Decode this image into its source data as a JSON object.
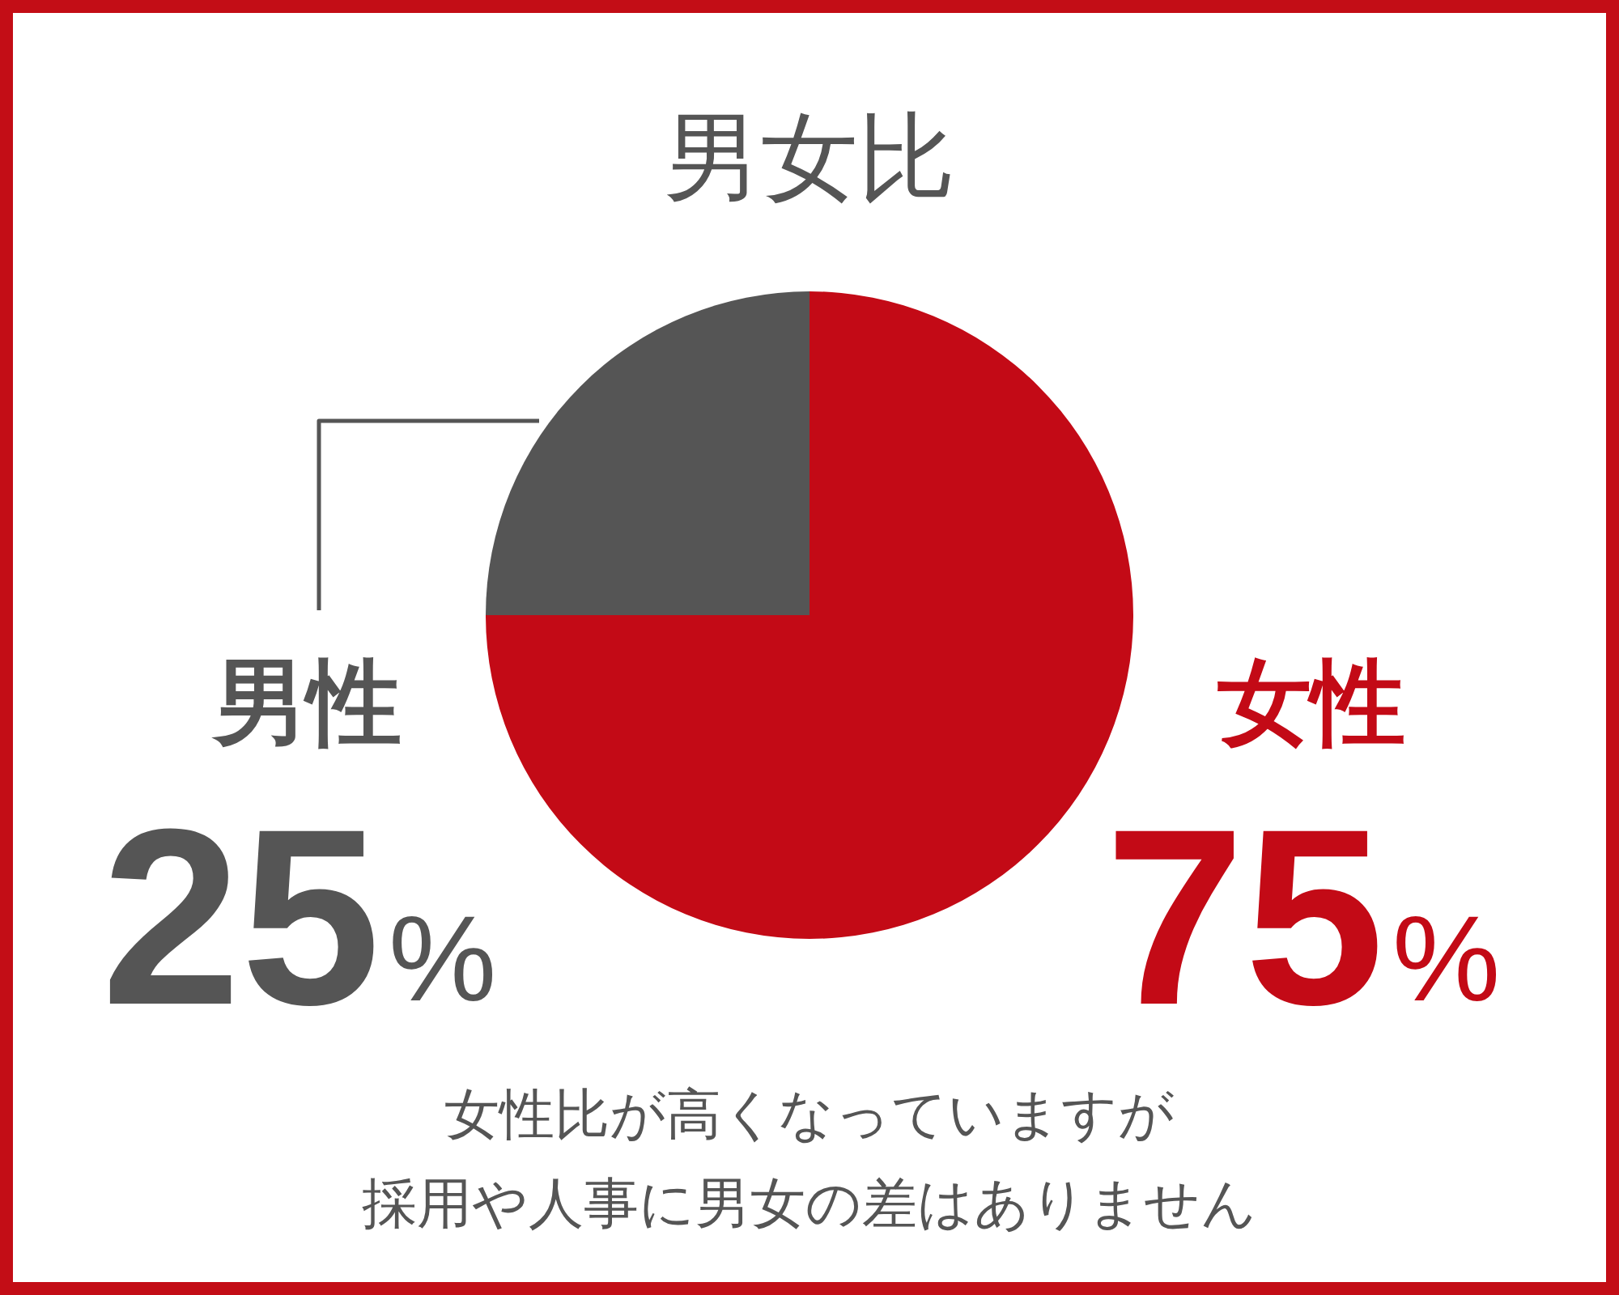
{
  "chart_data": {
    "type": "pie",
    "title": "男女比",
    "categories": [
      "男性",
      "女性"
    ],
    "values": [
      25,
      75
    ],
    "colors": [
      "#555555",
      "#c30a16"
    ],
    "value_labels": [
      "25%",
      "75%"
    ],
    "annotations": [
      "女性比が高くなっていますが",
      "採用や人事に男女の差はありません"
    ]
  }
}
